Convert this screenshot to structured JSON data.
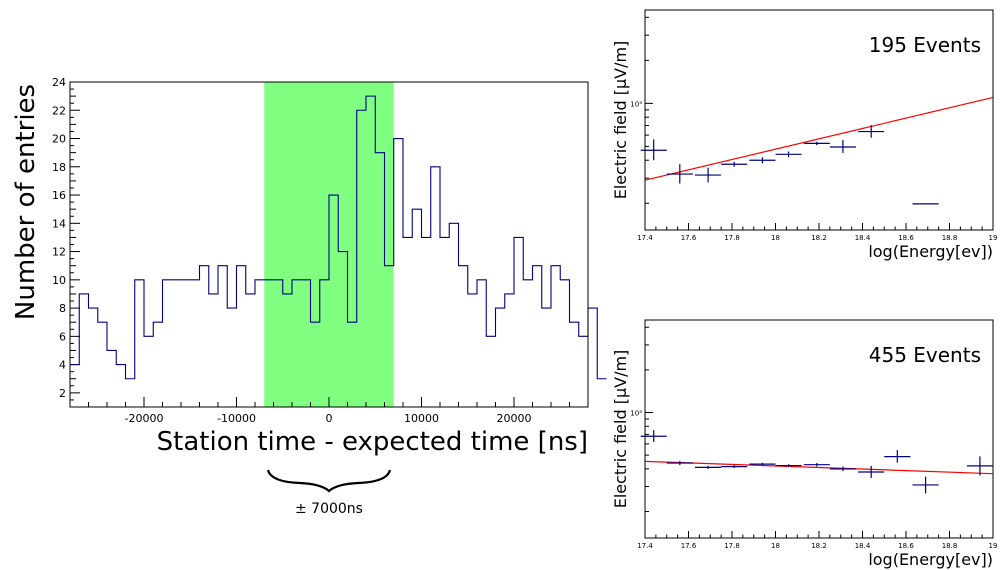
{
  "chart_data": [
    {
      "type": "histogram",
      "xlabel": "Station time - expected time [ns]",
      "ylabel": "Number of entries",
      "xlim": [
        -28000,
        28000
      ],
      "ylim": [
        1,
        24
      ],
      "x_ticks": [
        -20000,
        -10000,
        0,
        10000,
        20000
      ],
      "x_tick_labels": [
        "-20000",
        "-10000",
        "0",
        "10000",
        "20000"
      ],
      "y_ticks": [
        2,
        4,
        6,
        8,
        10,
        12,
        14,
        16,
        18,
        20,
        22,
        24
      ],
      "y_tick_labels": [
        "2",
        "4",
        "6",
        "8",
        "10",
        "12",
        "14",
        "16",
        "18",
        "20",
        "22",
        "24"
      ],
      "bin_width": 1000,
      "bin_start": -28000,
      "values": [
        4,
        9,
        8,
        7,
        5,
        4,
        3,
        10,
        6,
        7,
        10,
        10,
        10,
        10,
        11,
        9,
        11,
        8,
        11,
        9,
        10,
        10,
        10,
        9,
        10,
        10,
        7,
        10,
        16,
        12,
        7,
        22,
        23,
        19,
        11,
        20,
        13,
        15,
        13,
        18,
        13,
        14,
        11,
        9,
        10,
        6,
        8,
        9,
        13,
        10,
        11,
        8,
        11,
        10,
        7,
        6,
        8,
        3
      ],
      "highlight_band": {
        "from": -7000,
        "to": 7000,
        "color": "#80ff80"
      },
      "line_color": "#000080",
      "annotation": "± 7000ns"
    },
    {
      "type": "scatter",
      "label": "195 Events",
      "xlabel": "log(Energy[ev])",
      "ylabel": "Electric field [μV/m]",
      "xlim": [
        17.4,
        19
      ],
      "y_scale": "log",
      "ylim": [
        130,
        4500
      ],
      "x_ticks": [
        17.4,
        17.6,
        17.8,
        18,
        18.2,
        18.4,
        18.6,
        18.8,
        19
      ],
      "x_tick_labels": [
        "17.4",
        "17.6",
        "17.8",
        "18",
        "18.2",
        "18.4",
        "18.6",
        "18.8",
        "19"
      ],
      "y_tick_label": "10³",
      "y_tick_value": 1000,
      "points": [
        {
          "x": 17.44,
          "y": 470,
          "xerr": 0.06,
          "yerr_low": 70,
          "yerr_high": 90
        },
        {
          "x": 17.56,
          "y": 320,
          "xerr": 0.06,
          "yerr_low": 45,
          "yerr_high": 55
        },
        {
          "x": 17.69,
          "y": 315,
          "xerr": 0.06,
          "yerr_low": 35,
          "yerr_high": 40
        },
        {
          "x": 17.81,
          "y": 375,
          "xerr": 0.06,
          "yerr_low": 15,
          "yerr_high": 15
        },
        {
          "x": 17.94,
          "y": 400,
          "xerr": 0.06,
          "yerr_low": 20,
          "yerr_high": 20
        },
        {
          "x": 18.06,
          "y": 440,
          "xerr": 0.06,
          "yerr_low": 20,
          "yerr_high": 20
        },
        {
          "x": 18.19,
          "y": 525,
          "xerr": 0.06,
          "yerr_low": 15,
          "yerr_high": 15
        },
        {
          "x": 18.31,
          "y": 495,
          "xerr": 0.06,
          "yerr_low": 45,
          "yerr_high": 60
        },
        {
          "x": 18.44,
          "y": 635,
          "xerr": 0.06,
          "yerr_low": 60,
          "yerr_high": 70
        },
        {
          "x": 18.69,
          "y": 198,
          "xerr": 0.06,
          "yerr_low": 0,
          "yerr_high": 0
        }
      ],
      "fit_line": {
        "x": [
          17.4,
          19
        ],
        "y": [
          290,
          1100
        ]
      },
      "marker_color": "#000080",
      "fit_color": "#ff0000"
    },
    {
      "type": "scatter",
      "label": "455 Events",
      "xlabel": "log(Energy[ev])",
      "ylabel": "Electric field [μV/m]",
      "xlim": [
        17.4,
        19
      ],
      "y_scale": "log",
      "ylim": [
        130,
        4500
      ],
      "x_ticks": [
        17.4,
        17.6,
        17.8,
        18,
        18.2,
        18.4,
        18.6,
        18.8,
        19
      ],
      "x_tick_labels": [
        "17.4",
        "17.6",
        "17.8",
        "18",
        "18.2",
        "18.4",
        "18.6",
        "18.8",
        "19"
      ],
      "y_tick_label": "10³",
      "y_tick_value": 1000,
      "points": [
        {
          "x": 17.44,
          "y": 680,
          "xerr": 0.06,
          "yerr_low": 60,
          "yerr_high": 70
        },
        {
          "x": 17.56,
          "y": 440,
          "xerr": 0.06,
          "yerr_low": 15,
          "yerr_high": 15
        },
        {
          "x": 17.69,
          "y": 410,
          "xerr": 0.06,
          "yerr_low": 10,
          "yerr_high": 10
        },
        {
          "x": 17.81,
          "y": 415,
          "xerr": 0.06,
          "yerr_low": 10,
          "yerr_high": 10
        },
        {
          "x": 17.94,
          "y": 432,
          "xerr": 0.06,
          "yerr_low": 10,
          "yerr_high": 10
        },
        {
          "x": 18.06,
          "y": 422,
          "xerr": 0.06,
          "yerr_low": 10,
          "yerr_high": 10
        },
        {
          "x": 18.19,
          "y": 428,
          "xerr": 0.06,
          "yerr_low": 12,
          "yerr_high": 12
        },
        {
          "x": 18.31,
          "y": 400,
          "xerr": 0.06,
          "yerr_low": 15,
          "yerr_high": 15
        },
        {
          "x": 18.44,
          "y": 380,
          "xerr": 0.06,
          "yerr_low": 35,
          "yerr_high": 40
        },
        {
          "x": 18.56,
          "y": 488,
          "xerr": 0.06,
          "yerr_low": 45,
          "yerr_high": 55
        },
        {
          "x": 18.69,
          "y": 308,
          "xerr": 0.06,
          "yerr_low": 40,
          "yerr_high": 45
        },
        {
          "x": 18.94,
          "y": 420,
          "xerr": 0.06,
          "yerr_low": 60,
          "yerr_high": 70
        }
      ],
      "fit_line": {
        "x": [
          17.4,
          19
        ],
        "y": [
          452,
          370
        ]
      },
      "marker_color": "#000080",
      "fit_color": "#ff0000"
    }
  ]
}
